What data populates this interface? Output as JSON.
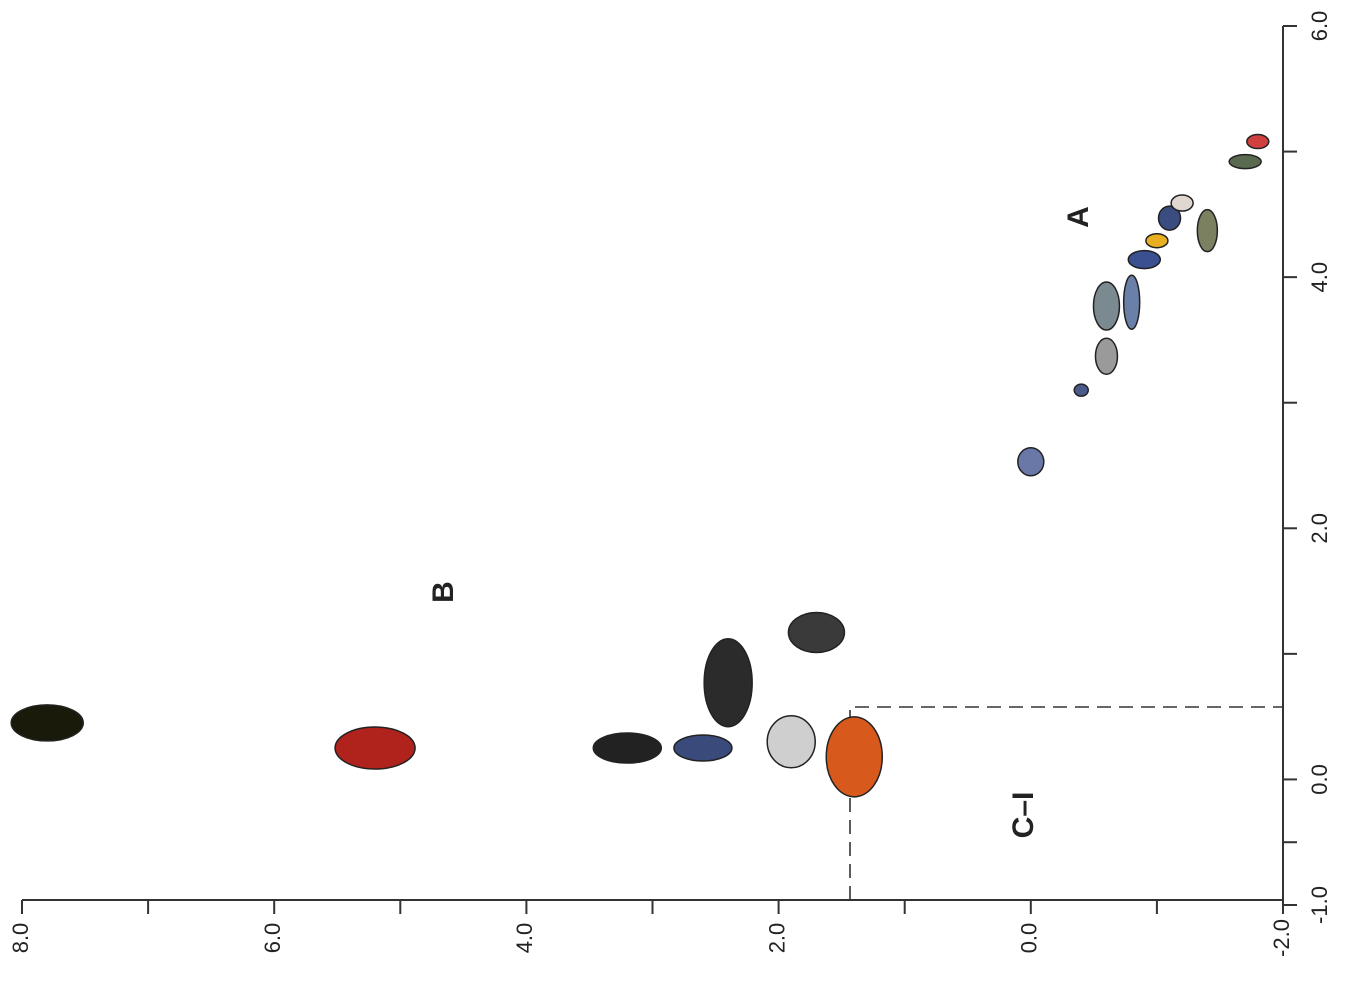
{
  "chart_data": {
    "type": "scatter",
    "xlim": [
      8,
      -2
    ],
    "ylim": [
      -1,
      6
    ],
    "xticks": [
      {
        "value": 8,
        "label": "8.0"
      },
      {
        "value": 6,
        "label": "6.0"
      },
      {
        "value": 4,
        "label": "4.0"
      },
      {
        "value": 2,
        "label": "2.0"
      },
      {
        "value": 0,
        "label": "0.0"
      },
      {
        "value": -2,
        "label": "-2.0"
      }
    ],
    "yticks": [
      {
        "value": -1,
        "label": "-1.0"
      },
      {
        "value": 0,
        "label": "0.0"
      },
      {
        "value": 2,
        "label": "2.0"
      },
      {
        "value": 4,
        "label": "4.0"
      },
      {
        "value": 6,
        "label": "6.0"
      }
    ],
    "annotations": [
      "A",
      "B",
      "C–I"
    ],
    "series": [
      {
        "x": [
          7.8,
          5.2,
          3.2,
          2.6,
          2.4,
          1.7,
          1.9,
          1.4,
          0.0,
          -0.4,
          -0.6,
          -0.6,
          -0.8,
          -0.9,
          -1.0,
          -1.1,
          -1.2,
          -1.4,
          -1.7,
          -1.8
        ],
        "values": [
          0.45,
          0.25,
          0.25,
          0.25,
          0.77,
          1.17,
          0.3,
          0.18,
          2.53,
          3.1,
          3.37,
          3.77,
          3.8,
          4.14,
          4.29,
          4.47,
          4.59,
          4.37,
          4.92,
          5.08
        ],
        "colors": [
          "#1a1a0a",
          "#b0221c",
          "#222222",
          "#3a4a7a",
          "#2b2b2b",
          "#3a3a3a",
          "#cfcfcf",
          "#d8591c",
          "#6a78a8",
          "#4a5a8a",
          "#9a9a9a",
          "#7a8a90",
          "#6a80a8",
          "#3a5090",
          "#e8b020",
          "#3a4c80",
          "#e0d8d0",
          "#7a8060",
          "#5a6a50",
          "#d04040"
        ]
      }
    ]
  }
}
